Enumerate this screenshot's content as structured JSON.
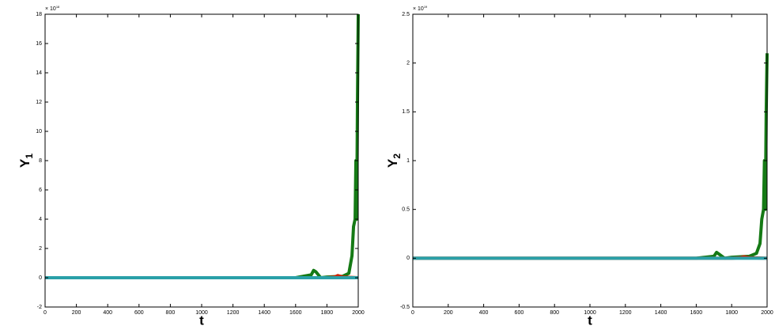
{
  "chart_data": [
    {
      "type": "line",
      "xlabel": "t",
      "ylabel": "Y",
      "ylabel_sub": "1",
      "y_multiplier_base": "× 10",
      "y_multiplier_exp": "18",
      "xlim": [
        0,
        2000
      ],
      "xticks": [
        0,
        200,
        400,
        600,
        800,
        1000,
        1200,
        1400,
        1600,
        1800,
        2000
      ],
      "ylim": [
        -2,
        18
      ],
      "yticks": [
        -2,
        0,
        2,
        4,
        6,
        8,
        10,
        12,
        14,
        16,
        18
      ],
      "series": [
        {
          "color": "#157a15",
          "x": [
            0,
            1600,
            1650,
            1700,
            1715,
            1730,
            1745,
            1760,
            1800,
            1900,
            1940,
            1960,
            1970,
            1980,
            1985,
            1990,
            1995,
            2000
          ],
          "values": [
            0,
            0,
            0.1,
            0.2,
            0.5,
            0.4,
            0.2,
            0,
            0.05,
            0.1,
            0.3,
            1.5,
            3.5,
            4,
            8,
            4,
            12,
            18
          ]
        },
        {
          "color": "#cc2200",
          "x": [
            0,
            1800,
            1850,
            1870,
            1900,
            2000
          ],
          "values": [
            0,
            0,
            0.05,
            0.15,
            0.05,
            0
          ]
        },
        {
          "color": "#2aa0a8",
          "x": [
            0,
            2000
          ],
          "values": [
            0,
            0
          ]
        }
      ]
    },
    {
      "type": "line",
      "xlabel": "t",
      "ylabel": "Y",
      "ylabel_sub": "2",
      "y_multiplier_base": "× 10",
      "y_multiplier_exp": "19",
      "xlim": [
        0,
        2000
      ],
      "xticks": [
        0,
        200,
        400,
        600,
        800,
        1000,
        1200,
        1400,
        1600,
        1800,
        2000
      ],
      "ylim": [
        -0.5,
        2.5
      ],
      "yticks": [
        -0.5,
        0,
        0.5,
        1,
        1.5,
        2,
        2.5
      ],
      "series": [
        {
          "color": "#157a15",
          "x": [
            0,
            1600,
            1650,
            1700,
            1715,
            1730,
            1745,
            1760,
            1800,
            1900,
            1940,
            1960,
            1970,
            1980,
            1985,
            1990,
            1995,
            2000
          ],
          "values": [
            0,
            0,
            0.01,
            0.02,
            0.06,
            0.04,
            0.02,
            0,
            0.01,
            0.02,
            0.05,
            0.15,
            0.4,
            0.5,
            1,
            0.5,
            1.5,
            2.1
          ]
        },
        {
          "color": "#cc2200",
          "x": [
            0,
            1800,
            1850,
            1870,
            1900,
            2000
          ],
          "values": [
            0,
            0,
            0.005,
            0.015,
            0.005,
            0
          ]
        },
        {
          "color": "#2aa0a8",
          "x": [
            0,
            2000
          ],
          "values": [
            0,
            0
          ]
        }
      ]
    }
  ]
}
